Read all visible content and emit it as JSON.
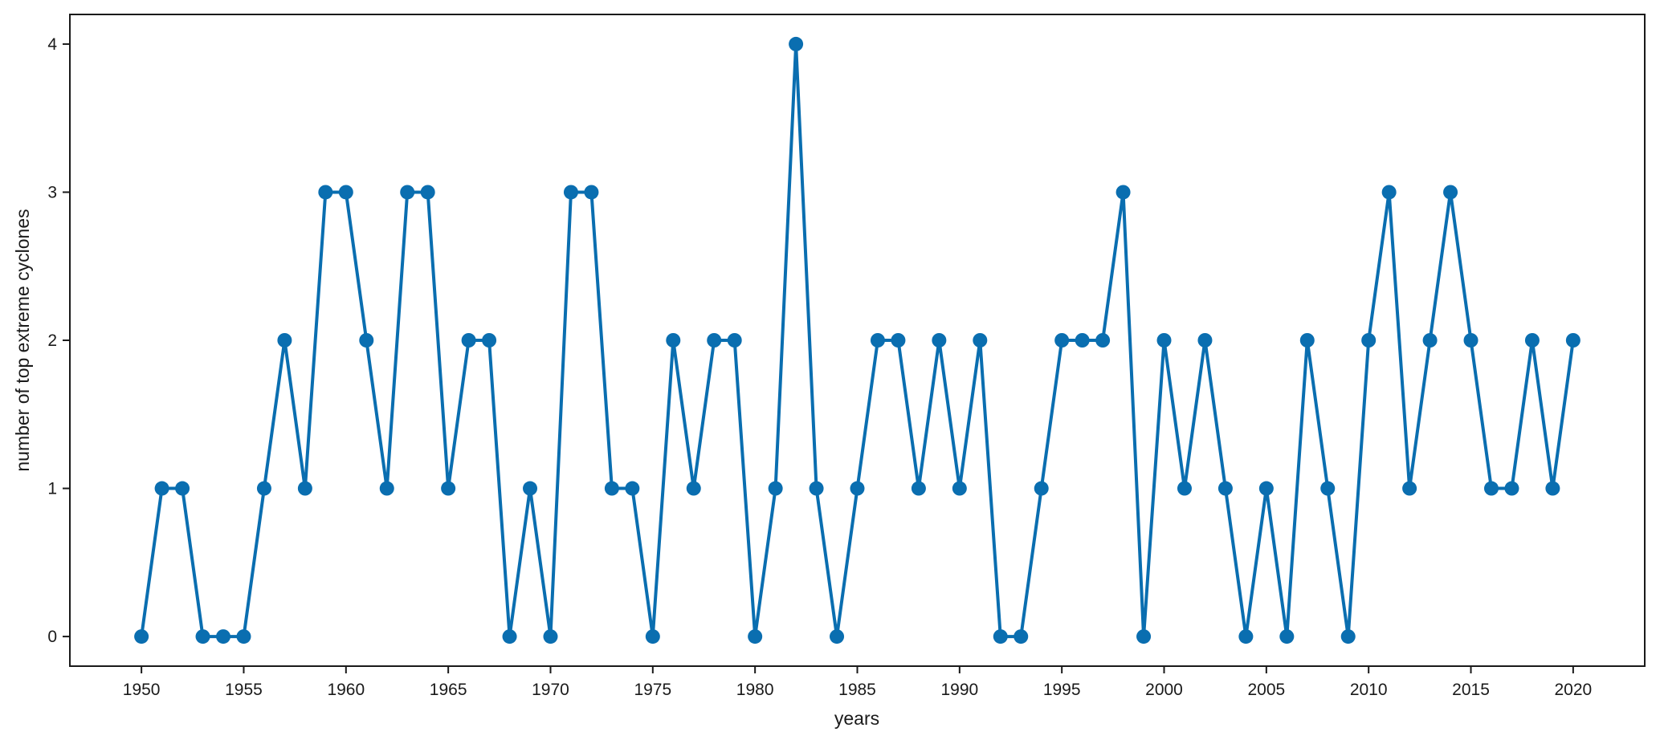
{
  "chart_data": {
    "type": "line",
    "title": "",
    "xlabel": "years",
    "ylabel": "number of top extreme cyclones",
    "xlim": [
      1946.5,
      2023.5
    ],
    "ylim": [
      -0.2,
      4.2
    ],
    "x_ticks": [
      1950,
      1955,
      1960,
      1965,
      1970,
      1975,
      1980,
      1985,
      1990,
      1995,
      2000,
      2005,
      2010,
      2015,
      2020
    ],
    "y_ticks": [
      0,
      1,
      2,
      3,
      4
    ],
    "grid": false,
    "legend": "none",
    "series": [
      {
        "color": "#0a6eb0",
        "marker": "circle",
        "x": [
          1950,
          1951,
          1952,
          1953,
          1954,
          1955,
          1956,
          1957,
          1958,
          1959,
          1960,
          1961,
          1962,
          1963,
          1964,
          1965,
          1966,
          1967,
          1968,
          1969,
          1970,
          1971,
          1972,
          1973,
          1974,
          1975,
          1976,
          1977,
          1978,
          1979,
          1980,
          1981,
          1982,
          1983,
          1984,
          1985,
          1986,
          1987,
          1988,
          1989,
          1990,
          1991,
          1992,
          1993,
          1994,
          1995,
          1996,
          1997,
          1998,
          1999,
          2000,
          2001,
          2002,
          2003,
          2004,
          2005,
          2006,
          2007,
          2008,
          2009,
          2010,
          2011,
          2012,
          2013,
          2014,
          2015,
          2016,
          2017,
          2018,
          2019,
          2020
        ],
        "values": [
          0,
          1,
          1,
          0,
          0,
          0,
          1,
          2,
          1,
          3,
          3,
          2,
          1,
          3,
          3,
          1,
          2,
          2,
          0,
          1,
          0,
          3,
          3,
          1,
          1,
          0,
          2,
          1,
          2,
          2,
          0,
          1,
          4,
          1,
          0,
          1,
          2,
          2,
          1,
          2,
          1,
          2,
          0,
          0,
          1,
          2,
          2,
          2,
          3,
          0,
          2,
          1,
          2,
          1,
          0,
          1,
          0,
          2,
          1,
          0,
          2,
          3,
          1,
          2,
          3,
          2,
          1,
          1,
          2,
          1,
          2
        ]
      }
    ]
  }
}
